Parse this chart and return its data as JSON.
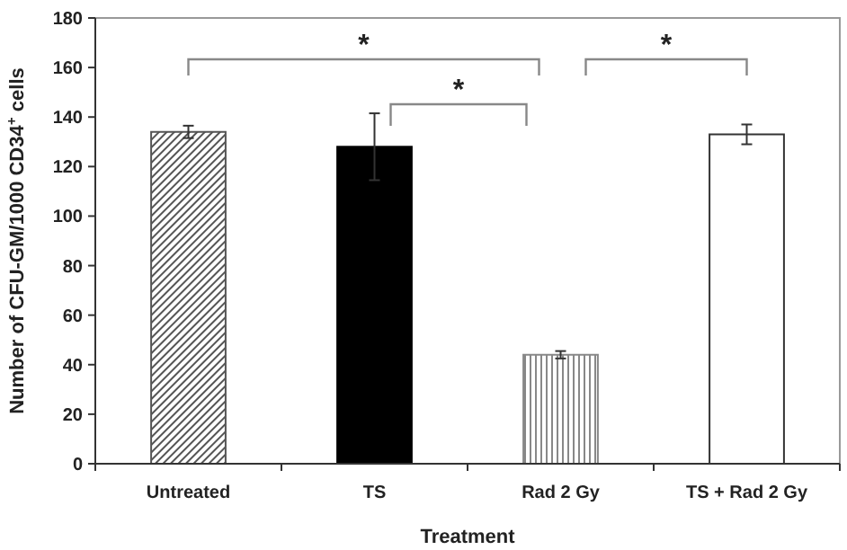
{
  "chart_data": {
    "type": "bar",
    "xlabel": "Treatment",
    "ylabel": "Number of CFU-GM/1000 CD34$^{+}$ cells",
    "categories": [
      "Untreated",
      "TS",
      "Rad 2 Gy",
      "TS + Rad 2 Gy"
    ],
    "values": [
      134,
      128,
      44,
      133
    ],
    "errors": [
      2.5,
      13.5,
      1.5,
      4
    ],
    "colors": [
      "#555555",
      "#000000",
      "#888888",
      "#ffffff"
    ],
    "ylim": [
      0,
      180
    ],
    "yticks": [
      0,
      20,
      40,
      60,
      80,
      100,
      120,
      140,
      160,
      180
    ],
    "annotations": [
      "*",
      "*",
      "*"
    ]
  }
}
